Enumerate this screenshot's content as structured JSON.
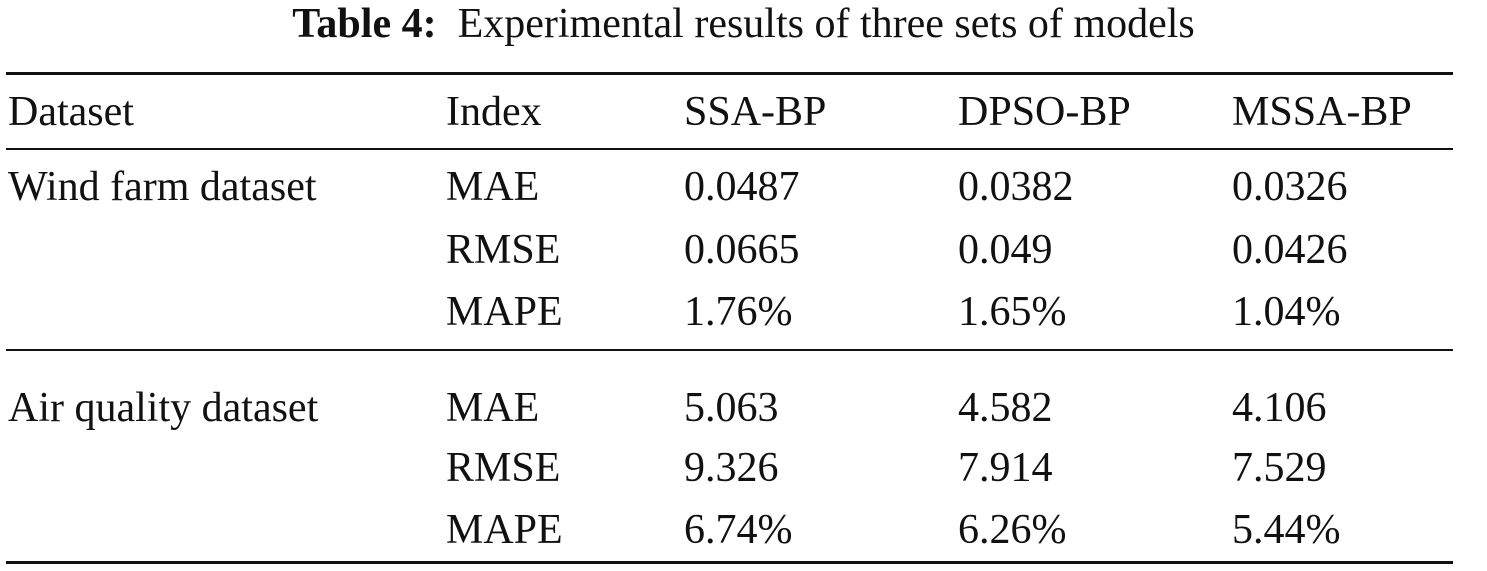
{
  "caption": {
    "label": "Table 4:",
    "text": "Experimental results of three sets of models"
  },
  "columns": [
    "Dataset",
    "Index",
    "SSA-BP",
    "DPSO-BP",
    "MSSA-BP"
  ],
  "groups": [
    {
      "dataset": "Wind farm dataset",
      "rows": [
        {
          "index": "MAE",
          "values": [
            "0.0487",
            "0.0382",
            "0.0326"
          ]
        },
        {
          "index": "RMSE",
          "values": [
            "0.0665",
            "0.049",
            "0.0426"
          ]
        },
        {
          "index": "MAPE",
          "values": [
            "1.76%",
            "1.65%",
            "1.04%"
          ]
        }
      ]
    },
    {
      "dataset": "Air quality dataset",
      "rows": [
        {
          "index": "MAE",
          "values": [
            "5.063",
            "4.582",
            "4.106"
          ]
        },
        {
          "index": "RMSE",
          "values": [
            "9.326",
            "7.914",
            "7.529"
          ]
        },
        {
          "index": "MAPE",
          "values": [
            "6.74%",
            "6.26%",
            "5.44%"
          ]
        }
      ]
    }
  ]
}
